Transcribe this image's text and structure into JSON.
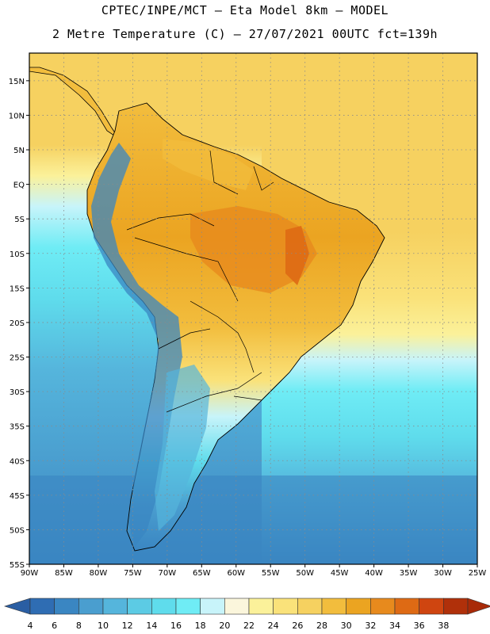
{
  "header": {
    "title_line1": "CPTEC/INPE/MCT –  Eta Model 8km – MODEL",
    "title_line2": "2 Metre Temperature (C) – 27/07/2021 00UTC fct=139h"
  },
  "map": {
    "lon_range": [
      -90,
      -25
    ],
    "lat_range": [
      -55,
      19
    ],
    "lon_ticks": [
      {
        "v": -90,
        "label": "90W"
      },
      {
        "v": -85,
        "label": "85W"
      },
      {
        "v": -80,
        "label": "80W"
      },
      {
        "v": -75,
        "label": "75W"
      },
      {
        "v": -70,
        "label": "70W"
      },
      {
        "v": -65,
        "label": "65W"
      },
      {
        "v": -60,
        "label": "60W"
      },
      {
        "v": -55,
        "label": "55W"
      },
      {
        "v": -50,
        "label": "50W"
      },
      {
        "v": -45,
        "label": "45W"
      },
      {
        "v": -40,
        "label": "40W"
      },
      {
        "v": -35,
        "label": "35W"
      },
      {
        "v": -30,
        "label": "30W"
      },
      {
        "v": -25,
        "label": "25W"
      }
    ],
    "lat_ticks": [
      {
        "v": 15,
        "label": "15N"
      },
      {
        "v": 10,
        "label": "10N"
      },
      {
        "v": 5,
        "label": "5N"
      },
      {
        "v": 0,
        "label": "EQ"
      },
      {
        "v": -5,
        "label": "5S"
      },
      {
        "v": -10,
        "label": "10S"
      },
      {
        "v": -15,
        "label": "15S"
      },
      {
        "v": -20,
        "label": "20S"
      },
      {
        "v": -25,
        "label": "25S"
      },
      {
        "v": -30,
        "label": "30S"
      },
      {
        "v": -35,
        "label": "35S"
      },
      {
        "v": -40,
        "label": "40S"
      },
      {
        "v": -45,
        "label": "45S"
      },
      {
        "v": -50,
        "label": "50S"
      },
      {
        "v": -55,
        "label": "55S"
      }
    ],
    "grid": true
  },
  "legend": {
    "levels": [
      "4",
      "6",
      "8",
      "10",
      "12",
      "14",
      "16",
      "18",
      "20",
      "22",
      "24",
      "26",
      "28",
      "30",
      "32",
      "34",
      "36",
      "38"
    ],
    "colors": [
      "#2f6db3",
      "#3a86c2",
      "#4a9ecf",
      "#55b5dc",
      "#5ccbe4",
      "#5fdcec",
      "#6fecf5",
      "#c8f4fa",
      "#fbf6dc",
      "#fbf19a",
      "#fae27a",
      "#f6d160",
      "#f2bd3d",
      "#eba421",
      "#e78a1d",
      "#de6a14",
      "#cf4510",
      "#b0300a"
    ]
  }
}
